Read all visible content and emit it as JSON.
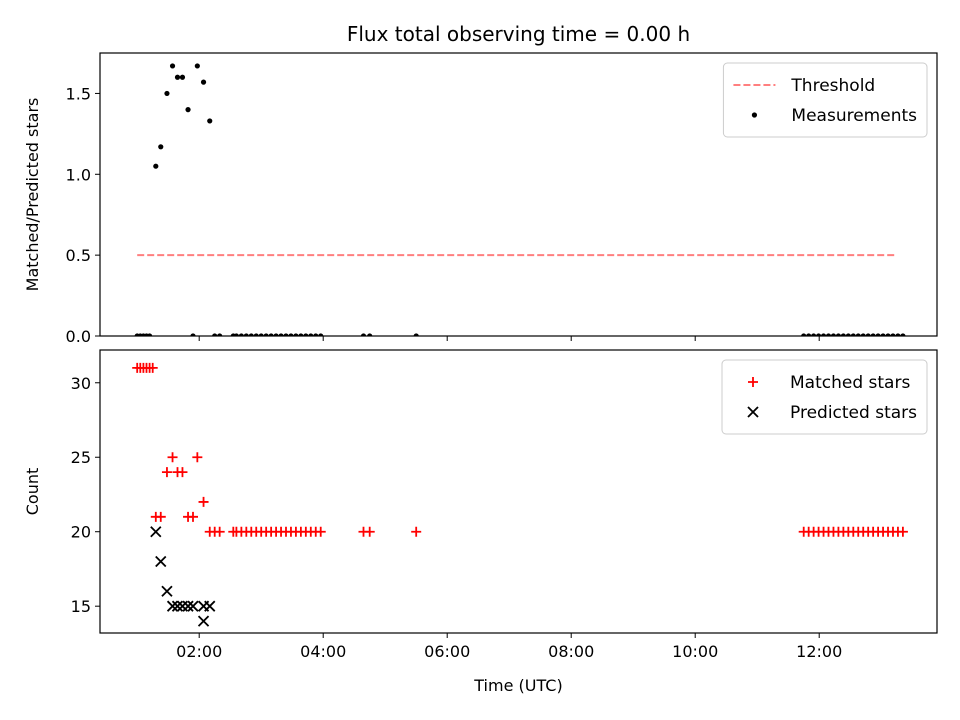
{
  "chart_data": [
    {
      "type": "scatter",
      "title": "Flux total observing time = 0.00 h",
      "xlabel": "",
      "ylabel": "Matched/Predicted stars",
      "xlim": [
        0.4,
        13.9
      ],
      "ylim": [
        0,
        1.75
      ],
      "xticks": [
        2,
        4,
        6,
        8,
        10,
        12
      ],
      "xtick_labels": [
        "",
        "",
        "",
        "",
        "",
        ""
      ],
      "yticks": [
        0.0,
        0.5,
        1.0,
        1.5
      ],
      "ytick_labels": [
        "0.0",
        "0.5",
        "1.0",
        "1.5"
      ],
      "legend_position": "top-right",
      "threshold": {
        "name": "Threshold",
        "x": [
          1.0,
          13.25
        ],
        "y": 0.5,
        "color": "#ff7f7f",
        "style": "dashed"
      },
      "series": [
        {
          "name": "Measurements",
          "marker": "dot",
          "color": "#000000",
          "points": [
            [
              1.0,
              0
            ],
            [
              1.05,
              0
            ],
            [
              1.1,
              0
            ],
            [
              1.15,
              0
            ],
            [
              1.2,
              0
            ],
            [
              1.3,
              1.05
            ],
            [
              1.38,
              1.17
            ],
            [
              1.48,
              1.5
            ],
            [
              1.57,
              1.67
            ],
            [
              1.65,
              1.6
            ],
            [
              1.73,
              1.6
            ],
            [
              1.82,
              1.4
            ],
            [
              1.9,
              0
            ],
            [
              1.97,
              1.67
            ],
            [
              2.07,
              1.57
            ],
            [
              2.17,
              1.33
            ],
            [
              2.25,
              0
            ],
            [
              2.33,
              0
            ],
            [
              2.55,
              0
            ],
            [
              2.6,
              0
            ],
            [
              2.68,
              0
            ],
            [
              2.76,
              0
            ],
            [
              2.84,
              0
            ],
            [
              2.92,
              0
            ],
            [
              3.0,
              0
            ],
            [
              3.08,
              0
            ],
            [
              3.16,
              0
            ],
            [
              3.24,
              0
            ],
            [
              3.32,
              0
            ],
            [
              3.4,
              0
            ],
            [
              3.48,
              0
            ],
            [
              3.56,
              0
            ],
            [
              3.64,
              0
            ],
            [
              3.72,
              0
            ],
            [
              3.8,
              0
            ],
            [
              3.88,
              0
            ],
            [
              3.96,
              0
            ],
            [
              4.65,
              0
            ],
            [
              4.75,
              0
            ],
            [
              5.5,
              0
            ],
            [
              11.75,
              0
            ],
            [
              11.83,
              0
            ],
            [
              11.91,
              0
            ],
            [
              11.99,
              0
            ],
            [
              12.07,
              0
            ],
            [
              12.15,
              0
            ],
            [
              12.23,
              0
            ],
            [
              12.31,
              0
            ],
            [
              12.39,
              0
            ],
            [
              12.47,
              0
            ],
            [
              12.55,
              0
            ],
            [
              12.63,
              0
            ],
            [
              12.71,
              0
            ],
            [
              12.79,
              0
            ],
            [
              12.87,
              0
            ],
            [
              12.95,
              0
            ],
            [
              13.03,
              0
            ],
            [
              13.11,
              0
            ],
            [
              13.19,
              0
            ],
            [
              13.27,
              0
            ],
            [
              13.35,
              0
            ]
          ]
        }
      ]
    },
    {
      "type": "scatter",
      "title": "",
      "xlabel": "Time (UTC)",
      "ylabel": "Count",
      "xlim": [
        0.4,
        13.9
      ],
      "ylim": [
        13.2,
        32.2
      ],
      "xticks": [
        2,
        4,
        6,
        8,
        10,
        12
      ],
      "xtick_labels": [
        "02:00",
        "04:00",
        "06:00",
        "08:00",
        "10:00",
        "12:00"
      ],
      "yticks": [
        15,
        20,
        25,
        30
      ],
      "ytick_labels": [
        "15",
        "20",
        "25",
        "30"
      ],
      "legend_position": "top-right",
      "series": [
        {
          "name": "Matched stars",
          "marker": "plus",
          "color": "#ff0000",
          "points": [
            [
              1.0,
              31
            ],
            [
              1.05,
              31
            ],
            [
              1.1,
              31
            ],
            [
              1.15,
              31
            ],
            [
              1.2,
              31
            ],
            [
              1.25,
              31
            ],
            [
              1.3,
              21
            ],
            [
              1.38,
              21
            ],
            [
              1.48,
              24
            ],
            [
              1.57,
              25
            ],
            [
              1.65,
              24
            ],
            [
              1.73,
              24
            ],
            [
              1.82,
              21
            ],
            [
              1.9,
              21
            ],
            [
              1.97,
              25
            ],
            [
              2.07,
              22
            ],
            [
              2.17,
              20
            ],
            [
              2.25,
              20
            ],
            [
              2.33,
              20
            ],
            [
              2.55,
              20
            ],
            [
              2.6,
              20
            ],
            [
              2.68,
              20
            ],
            [
              2.76,
              20
            ],
            [
              2.84,
              20
            ],
            [
              2.92,
              20
            ],
            [
              3.0,
              20
            ],
            [
              3.08,
              20
            ],
            [
              3.16,
              20
            ],
            [
              3.24,
              20
            ],
            [
              3.32,
              20
            ],
            [
              3.4,
              20
            ],
            [
              3.48,
              20
            ],
            [
              3.56,
              20
            ],
            [
              3.64,
              20
            ],
            [
              3.72,
              20
            ],
            [
              3.8,
              20
            ],
            [
              3.88,
              20
            ],
            [
              3.96,
              20
            ],
            [
              4.65,
              20
            ],
            [
              4.75,
              20
            ],
            [
              5.5,
              20
            ],
            [
              11.75,
              20
            ],
            [
              11.83,
              20
            ],
            [
              11.91,
              20
            ],
            [
              11.99,
              20
            ],
            [
              12.07,
              20
            ],
            [
              12.15,
              20
            ],
            [
              12.23,
              20
            ],
            [
              12.31,
              20
            ],
            [
              12.39,
              20
            ],
            [
              12.47,
              20
            ],
            [
              12.55,
              20
            ],
            [
              12.63,
              20
            ],
            [
              12.71,
              20
            ],
            [
              12.79,
              20
            ],
            [
              12.87,
              20
            ],
            [
              12.95,
              20
            ],
            [
              13.03,
              20
            ],
            [
              13.11,
              20
            ],
            [
              13.19,
              20
            ],
            [
              13.27,
              20
            ],
            [
              13.35,
              20
            ]
          ]
        },
        {
          "name": "Predicted stars",
          "marker": "x",
          "color": "#000000",
          "points": [
            [
              1.3,
              20
            ],
            [
              1.38,
              18
            ],
            [
              1.48,
              16
            ],
            [
              1.57,
              15
            ],
            [
              1.65,
              15
            ],
            [
              1.73,
              15
            ],
            [
              1.82,
              15
            ],
            [
              1.9,
              15
            ],
            [
              2.07,
              14
            ],
            [
              2.07,
              15
            ],
            [
              2.17,
              15
            ]
          ]
        }
      ]
    }
  ]
}
